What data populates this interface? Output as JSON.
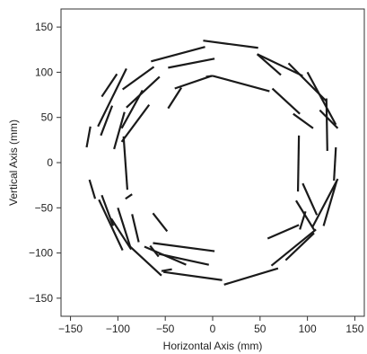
{
  "chart_data": {
    "type": "line",
    "title": "",
    "xlabel": "Horizontal Axis (mm)",
    "ylabel": "Vertical Axis (mm)",
    "xlim": [
      -160,
      160
    ],
    "ylim": [
      -170,
      170
    ],
    "xticks": [
      -150,
      -100,
      -50,
      0,
      50,
      100,
      150
    ],
    "yticks": [
      -150,
      -100,
      -50,
      0,
      50,
      100,
      150
    ],
    "xtick_labels": [
      "−150",
      "−100",
      "−50",
      "0",
      "50",
      "100",
      "150"
    ],
    "ytick_labels": [
      "−150",
      "−100",
      "−50",
      "0",
      "50",
      "100",
      "150"
    ],
    "grid": false,
    "line_color": "#1a1a1a",
    "segments": [
      [
        [
          -10,
          135
        ],
        [
          48,
          127
        ]
      ],
      [
        [
          -65,
          112
        ],
        [
          -8,
          128
        ]
      ],
      [
        [
          -95,
          81
        ],
        [
          -62,
          106
        ]
      ],
      [
        [
          -117,
          73
        ],
        [
          -101,
          98
        ]
      ],
      [
        [
          -121,
          40
        ],
        [
          -91,
          104
        ]
      ],
      [
        [
          -133,
          17
        ],
        [
          -129,
          40
        ]
      ],
      [
        [
          -130,
          -19
        ],
        [
          -124,
          -40
        ]
      ],
      [
        [
          -117,
          -36
        ],
        [
          -105,
          -70
        ]
      ],
      [
        [
          -120,
          -41
        ],
        [
          -95,
          -97
        ]
      ],
      [
        [
          -87,
          -93
        ],
        [
          -54,
          -125
        ]
      ],
      [
        [
          -52,
          -121
        ],
        [
          10,
          -130
        ]
      ],
      [
        [
          -54,
          -120
        ],
        [
          -43,
          -118
        ]
      ],
      [
        [
          12,
          -135
        ],
        [
          69,
          -117
        ]
      ],
      [
        [
          62,
          -114
        ],
        [
          109,
          -74
        ]
      ],
      [
        [
          77,
          -108
        ],
        [
          107,
          -78
        ]
      ],
      [
        [
          105,
          -72
        ],
        [
          132,
          -18
        ]
      ],
      [
        [
          117,
          -70
        ],
        [
          131,
          -20
        ]
      ],
      [
        [
          128,
          -20
        ],
        [
          130,
          17
        ]
      ],
      [
        [
          121,
          13
        ],
        [
          120,
          71
        ]
      ],
      [
        [
          113,
          58
        ],
        [
          132,
          38
        ]
      ],
      [
        [
          100,
          100
        ],
        [
          130,
          42
        ]
      ],
      [
        [
          80,
          110
        ],
        [
          120,
          68
        ]
      ],
      [
        [
          47,
          120
        ],
        [
          72,
          97
        ]
      ],
      [
        [
          47,
          120
        ],
        [
          95,
          96
        ]
      ],
      [
        [
          -47,
          105
        ],
        [
          2,
          115
        ]
      ],
      [
        [
          -40,
          82
        ],
        [
          -1,
          96
        ]
      ],
      [
        [
          0,
          96
        ],
        [
          60,
          79
        ]
      ],
      [
        [
          -91,
          61
        ],
        [
          -56,
          95
        ]
      ],
      [
        [
          -96,
          38
        ],
        [
          -74,
          80
        ]
      ],
      [
        [
          -104,
          15
        ],
        [
          -93,
          56
        ]
      ],
      [
        [
          -100,
          -50
        ],
        [
          -87,
          -93
        ]
      ],
      [
        [
          -92,
          -40
        ],
        [
          -85,
          -35
        ]
      ],
      [
        [
          -107,
          -62
        ],
        [
          -86,
          -96
        ]
      ],
      [
        [
          -57,
          -101
        ],
        [
          -4,
          -113
        ]
      ],
      [
        [
          -72,
          -93
        ],
        [
          -28,
          -113
        ]
      ],
      [
        [
          -66,
          -92
        ],
        [
          -57,
          -104
        ]
      ],
      [
        [
          -63,
          -89
        ],
        [
          2,
          -98
        ]
      ],
      [
        [
          58,
          -84
        ],
        [
          91,
          -69
        ]
      ],
      [
        [
          88,
          -42
        ],
        [
          108,
          -76
        ]
      ],
      [
        [
          95,
          -23
        ],
        [
          110,
          -58
        ]
      ],
      [
        [
          92,
          -74
        ],
        [
          98,
          -54
        ]
      ],
      [
        [
          -90,
          -30
        ],
        [
          -94,
          29
        ]
      ],
      [
        [
          -96,
          23
        ],
        [
          -67,
          64
        ]
      ],
      [
        [
          -47,
          60
        ],
        [
          -33,
          83
        ]
      ],
      [
        [
          -118,
          30
        ],
        [
          -106,
          63
        ]
      ],
      [
        [
          -85,
          -57
        ],
        [
          -78,
          -88
        ]
      ],
      [
        [
          63,
          82
        ],
        [
          92,
          54
        ]
      ],
      [
        [
          85,
          54
        ],
        [
          106,
          38
        ]
      ],
      [
        [
          90,
          -32
        ],
        [
          91,
          30
        ]
      ],
      [
        [
          -63,
          -56
        ],
        [
          -48,
          -76
        ]
      ],
      [
        [
          -7,
          95
        ],
        [
          0,
          96
        ]
      ]
    ]
  }
}
